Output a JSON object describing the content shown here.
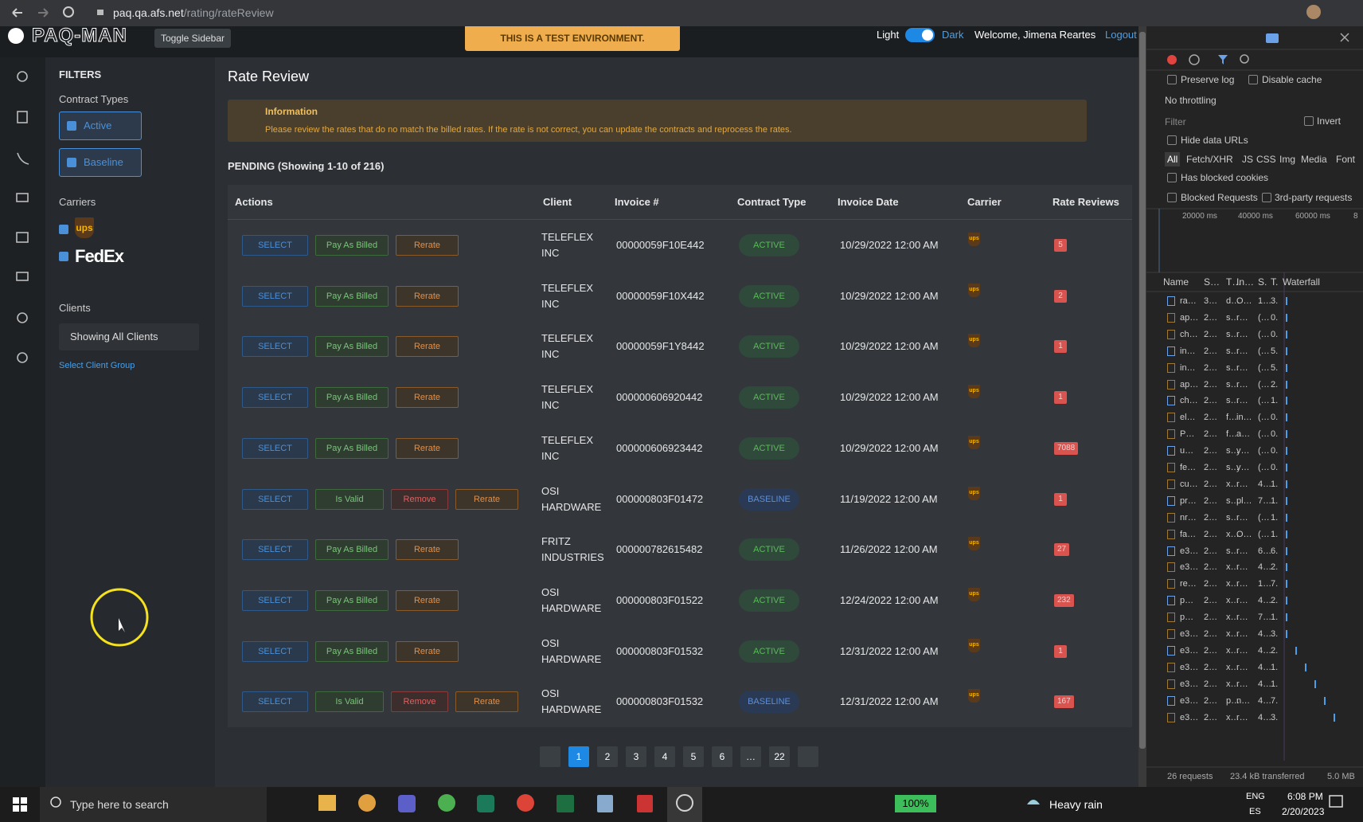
{
  "browser": {
    "url_host": "paq.qa.afs.net",
    "url_path": "/rating/rateReview"
  },
  "header": {
    "logo": "PAQ-MAN",
    "toggle": "Toggle Sidebar",
    "banner": "THIS IS A TEST ENVIRONMENT.",
    "light": "Light",
    "dark": "Dark",
    "welcome": "Welcome, Jimena Reartes",
    "logout": "Logout"
  },
  "filters": {
    "title": "FILTERS",
    "contract_types_label": "Contract Types",
    "contract_types": [
      "Active",
      "Baseline"
    ],
    "carriers_label": "Carriers",
    "carriers": [
      "ups",
      "FedEx"
    ],
    "clients_label": "Clients",
    "clients_select": "Showing All Clients",
    "client_group": "Select Client Group"
  },
  "page": {
    "title": "Rate Review",
    "info_title": "Information",
    "info_text": "Please review the rates that do no match the billed rates. If the rate is not correct, you can update the contracts and reprocess the rates.",
    "pending": "PENDING (Showing 1-10 of 216)"
  },
  "table": {
    "columns": [
      "Actions",
      "Client",
      "Invoice #",
      "Contract Type",
      "Invoice Date",
      "Carrier",
      "Rate Reviews"
    ],
    "rows": [
      {
        "actions": [
          "SELECT",
          "Pay As Billed",
          "Rerate"
        ],
        "client": [
          "TELEFLEX",
          "INC"
        ],
        "invoice": "00000059F10E442",
        "contract": "ACTIVE",
        "date": "10/29/2022 12:00 AM",
        "carrier": "ups",
        "reviews": "5"
      },
      {
        "actions": [
          "SELECT",
          "Pay As Billed",
          "Rerate"
        ],
        "client": [
          "TELEFLEX",
          "INC"
        ],
        "invoice": "00000059F10X442",
        "contract": "ACTIVE",
        "date": "10/29/2022 12:00 AM",
        "carrier": "ups",
        "reviews": "2"
      },
      {
        "actions": [
          "SELECT",
          "Pay As Billed",
          "Rerate"
        ],
        "client": [
          "TELEFLEX",
          "INC"
        ],
        "invoice": "00000059F1Y8442",
        "contract": "ACTIVE",
        "date": "10/29/2022 12:00 AM",
        "carrier": "ups",
        "reviews": "1"
      },
      {
        "actions": [
          "SELECT",
          "Pay As Billed",
          "Rerate"
        ],
        "client": [
          "TELEFLEX",
          "INC"
        ],
        "invoice": "000000606920442",
        "contract": "ACTIVE",
        "date": "10/29/2022 12:00 AM",
        "carrier": "ups",
        "reviews": "1"
      },
      {
        "actions": [
          "SELECT",
          "Pay As Billed",
          "Rerate"
        ],
        "client": [
          "TELEFLEX",
          "INC"
        ],
        "invoice": "000000606923442",
        "contract": "ACTIVE",
        "date": "10/29/2022 12:00 AM",
        "carrier": "ups",
        "reviews": "7088"
      },
      {
        "actions": [
          "SELECT",
          "Is Valid",
          "Remove",
          "Rerate"
        ],
        "client": [
          "OSI",
          "HARDWARE"
        ],
        "invoice": "000000803F01472",
        "contract": "BASELINE",
        "date": "11/19/2022 12:00 AM",
        "carrier": "ups",
        "reviews": "1"
      },
      {
        "actions": [
          "SELECT",
          "Pay As Billed",
          "Rerate"
        ],
        "client": [
          "FRITZ",
          "INDUSTRIES"
        ],
        "invoice": "000000782615482",
        "contract": "ACTIVE",
        "date": "11/26/2022 12:00 AM",
        "carrier": "ups",
        "reviews": "27"
      },
      {
        "actions": [
          "SELECT",
          "Pay As Billed",
          "Rerate"
        ],
        "client": [
          "OSI",
          "HARDWARE"
        ],
        "invoice": "000000803F01522",
        "contract": "ACTIVE",
        "date": "12/24/2022 12:00 AM",
        "carrier": "ups",
        "reviews": "232"
      },
      {
        "actions": [
          "SELECT",
          "Pay As Billed",
          "Rerate"
        ],
        "client": [
          "OSI",
          "HARDWARE"
        ],
        "invoice": "000000803F01532",
        "contract": "ACTIVE",
        "date": "12/31/2022 12:00 AM",
        "carrier": "ups",
        "reviews": "1"
      },
      {
        "actions": [
          "SELECT",
          "Is Valid",
          "Remove",
          "Rerate"
        ],
        "client": [
          "OSI",
          "HARDWARE"
        ],
        "invoice": "000000803F01532",
        "contract": "BASELINE",
        "date": "12/31/2022 12:00 AM",
        "carrier": "ups",
        "reviews": "167"
      }
    ]
  },
  "pagination": {
    "pages": [
      "1",
      "2",
      "3",
      "4",
      "5",
      "6",
      "…",
      "22"
    ],
    "active": 0
  },
  "devtools": {
    "preserve_log": "Preserve log",
    "disable_cache": "Disable cache",
    "throttling": "No throttling",
    "filter": "Filter",
    "invert": "Invert",
    "hide_data_urls": "Hide data URLs",
    "types": [
      "All",
      "Fetch/XHR",
      "JS",
      "CSS",
      "Img",
      "Media",
      "Font"
    ],
    "blocked_cookies": "Has blocked cookies",
    "blocked_requests": "Blocked Requests",
    "third_party": "3rd-party requests",
    "timeline": [
      "20000 ms",
      "40000 ms",
      "60000 ms",
      "8"
    ],
    "columns": [
      "Name",
      "S…",
      "T…",
      "In…",
      "S.",
      "T.",
      "Waterfall"
    ],
    "rows": [
      [
        "ra…",
        "3…",
        "d…",
        "O…",
        "1…",
        "3."
      ],
      [
        "ap…",
        "2…",
        "s…",
        "r…",
        "(…",
        "0."
      ],
      [
        "ch…",
        "2…",
        "s…",
        "r…",
        "(…",
        "0."
      ],
      [
        "in…",
        "2…",
        "s…",
        "r…",
        "(…",
        "5."
      ],
      [
        "in…",
        "2…",
        "s…",
        "r…",
        "(…",
        "5."
      ],
      [
        "ap…",
        "2…",
        "s…",
        "r…",
        "(…",
        "2."
      ],
      [
        "ch…",
        "2…",
        "s…",
        "r…",
        "(…",
        "1."
      ],
      [
        "el…",
        "2…",
        "f…",
        "in…",
        "(…",
        "0."
      ],
      [
        "P…",
        "2…",
        "f…",
        "a…",
        "(…",
        "0."
      ],
      [
        "u…",
        "2…",
        "s…",
        "y…",
        "(…",
        "0."
      ],
      [
        "fe…",
        "2…",
        "s…",
        "y…",
        "(…",
        "0."
      ],
      [
        "cu…",
        "2…",
        "x…",
        "r…",
        "4…",
        "1."
      ],
      [
        "pr…",
        "2…",
        "s…",
        "pl…",
        "7…",
        "1."
      ],
      [
        "nr…",
        "2…",
        "s…",
        "r…",
        "(…",
        "1."
      ],
      [
        "fa…",
        "2…",
        "x…",
        "O…",
        "(…",
        "1."
      ],
      [
        "e3…",
        "2…",
        "s…",
        "r…",
        "6…",
        "6."
      ],
      [
        "e3…",
        "2…",
        "x…",
        "r…",
        "4…",
        "2."
      ],
      [
        "re…",
        "2…",
        "x…",
        "r…",
        "1…",
        "7."
      ],
      [
        "p…",
        "2…",
        "x…",
        "r…",
        "4…",
        "2."
      ],
      [
        "p…",
        "2…",
        "x…",
        "r…",
        "7…",
        "1."
      ],
      [
        "e3…",
        "2…",
        "x…",
        "r…",
        "4…",
        "3."
      ],
      [
        "e3…",
        "2…",
        "x…",
        "r…",
        "4…",
        "2."
      ],
      [
        "e3…",
        "2…",
        "x…",
        "r…",
        "4…",
        "1."
      ],
      [
        "e3…",
        "2…",
        "x…",
        "r…",
        "4…",
        "1."
      ],
      [
        "e3…",
        "2…",
        "p…",
        "n…",
        "4…",
        "7."
      ],
      [
        "e3…",
        "2…",
        "x…",
        "r…",
        "4…",
        "3."
      ]
    ],
    "footer": [
      "26 requests",
      "23.4 kB transferred",
      "5.0 MB"
    ]
  },
  "taskbar": {
    "search": "Type here to search",
    "battery": "100%",
    "weather": "Heavy rain",
    "lang": [
      "ENG",
      "ES"
    ],
    "time": "6:08 PM",
    "date": "2/20/2023"
  }
}
